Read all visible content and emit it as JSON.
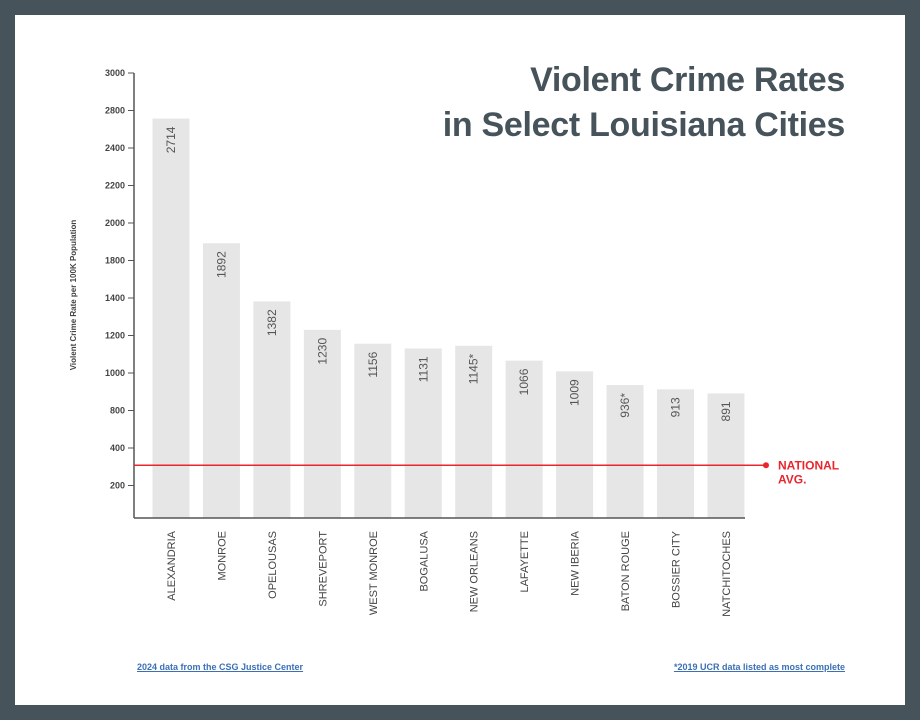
{
  "title_lines": [
    "Violent Crime Rates",
    "in Select Louisiana Cities"
  ],
  "footnotes": {
    "source": "2024 data from the CSG Justice Center",
    "note": "*2019 UCR data listed as most complete"
  },
  "chart_data": {
    "type": "bar",
    "title": "Violent Crime Rates in Select Louisiana Cities",
    "ylabel": "Violent Crime Rate per 100K Population",
    "xlabel": "",
    "y_tick_labels": [
      "3000",
      "2800",
      "2400",
      "2200",
      "2000",
      "1800",
      "1400",
      "1200",
      "1000",
      "800",
      "400",
      "200"
    ],
    "ylim": [
      0,
      3000
    ],
    "grid": false,
    "categories": [
      "ALEXANDRIA",
      "MONROE",
      "OPELOUSAS",
      "SHREVEPORT",
      "WEST MONROE",
      "BOGALUSA",
      "NEW ORLEANS",
      "LAFAYETTE",
      "NEW IBERIA",
      "BATON ROUGE",
      "BOSSIER CITY",
      "NATCHITOCHES"
    ],
    "values": [
      2714,
      1892,
      1382,
      1230,
      1156,
      1131,
      1145,
      1066,
      1009,
      936,
      913,
      891
    ],
    "data_labels": [
      "2714",
      "1892",
      "1382",
      "1230",
      "1156",
      "1131",
      "1145*",
      "1066",
      "1009",
      "936*",
      "913",
      "891"
    ],
    "reference_line": {
      "label_lines": [
        "NATIONAL",
        "AVG."
      ],
      "value": 308,
      "color": "#e8262d"
    },
    "bar_color": "#e6e6e6",
    "axis_color": "#555555"
  }
}
